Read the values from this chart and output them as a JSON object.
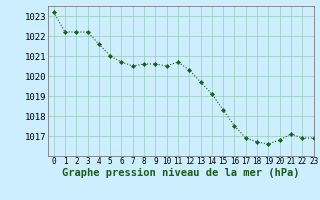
{
  "x": [
    0,
    1,
    2,
    3,
    4,
    5,
    6,
    7,
    8,
    9,
    10,
    11,
    12,
    13,
    14,
    15,
    16,
    17,
    18,
    19,
    20,
    21,
    22,
    23
  ],
  "y": [
    1023.2,
    1022.2,
    1022.2,
    1022.2,
    1021.6,
    1021.0,
    1020.7,
    1020.5,
    1020.6,
    1020.6,
    1020.5,
    1020.7,
    1020.3,
    1019.7,
    1019.1,
    1018.3,
    1017.5,
    1016.9,
    1016.7,
    1016.6,
    1016.8,
    1017.1,
    1016.9,
    1016.9
  ],
  "ylim": [
    1016.0,
    1023.5
  ],
  "yticks": [
    1017,
    1018,
    1019,
    1020,
    1021,
    1022,
    1023
  ],
  "xlim": [
    -0.5,
    23
  ],
  "xticks": [
    0,
    1,
    2,
    3,
    4,
    5,
    6,
    7,
    8,
    9,
    10,
    11,
    12,
    13,
    14,
    15,
    16,
    17,
    18,
    19,
    20,
    21,
    22,
    23
  ],
  "line_color": "#1a5c1a",
  "marker_color": "#1a5c1a",
  "bg_color": "#cceeff",
  "grid_color": "#99ccbb",
  "xlabel": "Graphe pression niveau de la mer (hPa)",
  "xlabel_fontsize": 7.5,
  "ylabel_fontsize": 6.5,
  "tick_fontsize": 5.5
}
